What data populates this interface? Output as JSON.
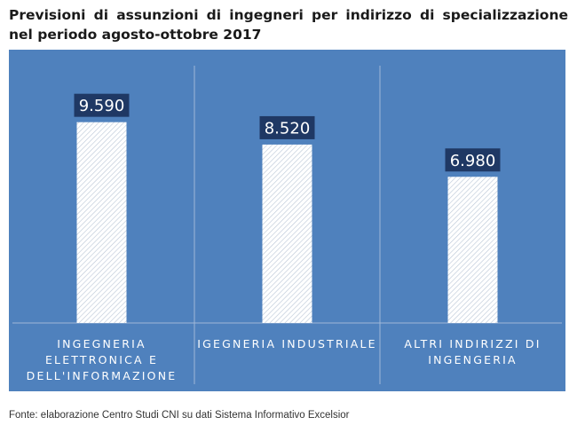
{
  "title": "Previsioni di assunzioni di ingegneri per indirizzo di specializzazione nel periodo agosto-ottobre 2017",
  "source": "Fonte: elaborazione Centro Studi CNI su dati Sistema Informativo Excelsior",
  "colors": {
    "background": "#4f81bd",
    "label_box": "#1f3864",
    "bar_fill": "#ffffff",
    "text_light": "#ffffff",
    "divider": "#9fb8d8"
  },
  "chart_data": {
    "type": "bar",
    "title": "",
    "xlabel": "",
    "ylabel": "",
    "grid": false,
    "ylim": [
      0,
      11000
    ],
    "categories": [
      "INGEGNERIA ELETTRONICA E DELL'INFORMAZIONE",
      "IGEGNERIA INDUSTRIALE",
      "ALTRI INDIRIZZI DI INGENGERIA"
    ],
    "category_lines": [
      [
        "INGEGNERIA",
        "ELETTRONICA E",
        "DELL'INFORMAZIONE"
      ],
      [
        "IGEGNERIA INDUSTRIALE"
      ],
      [
        "ALTRI INDIRIZZI DI",
        "INGENGERIA"
      ]
    ],
    "values": [
      9590,
      8520,
      6980
    ],
    "value_labels": [
      "9.590",
      "8.520",
      "6.980"
    ]
  }
}
